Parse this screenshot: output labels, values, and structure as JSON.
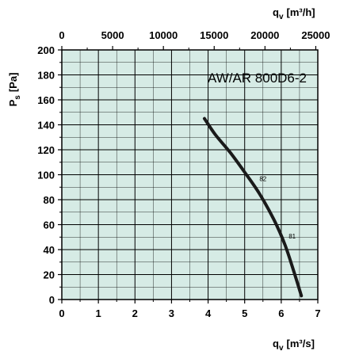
{
  "chart_data": {
    "type": "line",
    "title": "AW/AR 800D6-2",
    "x_bottom": {
      "label_base": "q",
      "label_sub": "v",
      "label_unit": "[m³/s]",
      "range": [
        0,
        7
      ],
      "ticks": [
        0,
        1,
        2,
        3,
        4,
        5,
        6,
        7
      ]
    },
    "x_top": {
      "label_base": "q",
      "label_sub": "v",
      "label_unit": "[m³/h]",
      "range": [
        0,
        25200
      ],
      "ticks": [
        0,
        5000,
        10000,
        15000,
        20000,
        25000
      ]
    },
    "y": {
      "label_base": "P",
      "label_sub": "s",
      "label_unit": "[Pa]",
      "range": [
        0,
        200
      ],
      "ticks": [
        0,
        20,
        40,
        60,
        80,
        100,
        120,
        140,
        160,
        180,
        200
      ]
    },
    "grid": true,
    "series": [
      {
        "x": [
          3.9,
          4.2,
          4.6,
          5.0,
          5.4,
          5.8,
          6.1,
          6.35,
          6.55
        ],
        "y": [
          145,
          132,
          118,
          102,
          85,
          64,
          44,
          22,
          3
        ]
      }
    ],
    "annotations": [
      {
        "text": "82",
        "x": 5.5,
        "y": 95
      },
      {
        "text": "81",
        "x": 6.3,
        "y": 49
      }
    ],
    "colors": {
      "plot_background": "#d6ebe5",
      "curve": "#1a1a1a",
      "grid": "#000000"
    }
  }
}
